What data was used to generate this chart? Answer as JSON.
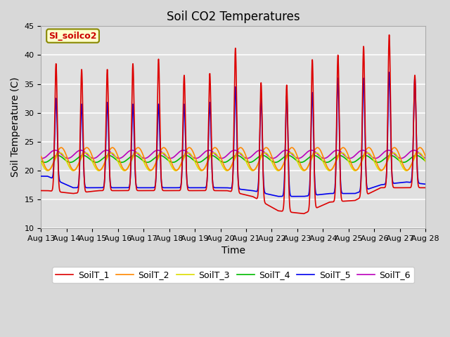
{
  "title": "Soil CO2 Temperatures",
  "xlabel": "Time",
  "ylabel": "Soil Temperature (C)",
  "ylim": [
    10,
    45
  ],
  "annotation": "SI_soilco2",
  "legend_labels": [
    "SoilT_1",
    "SoilT_2",
    "SoilT_3",
    "SoilT_4",
    "SoilT_5",
    "SoilT_6"
  ],
  "colors": [
    "#dd0000",
    "#ff8800",
    "#dddd00",
    "#00bb00",
    "#0000ee",
    "#bb00bb"
  ],
  "xtick_labels": [
    "Aug 13",
    "Aug 14",
    "Aug 15",
    "Aug 16",
    "Aug 17",
    "Aug 18",
    "Aug 19",
    "Aug 20",
    "Aug 21",
    "Aug 22",
    "Aug 23",
    "Aug 24",
    "Aug 25",
    "Aug 26",
    "Aug 27",
    "Aug 28"
  ],
  "title_fontsize": 12,
  "axis_label_fontsize": 10,
  "tick_fontsize": 8,
  "legend_fontsize": 9,
  "fig_bg": "#d8d8d8",
  "plot_bg": "#e0e0e0",
  "grid_color": "#ffffff"
}
